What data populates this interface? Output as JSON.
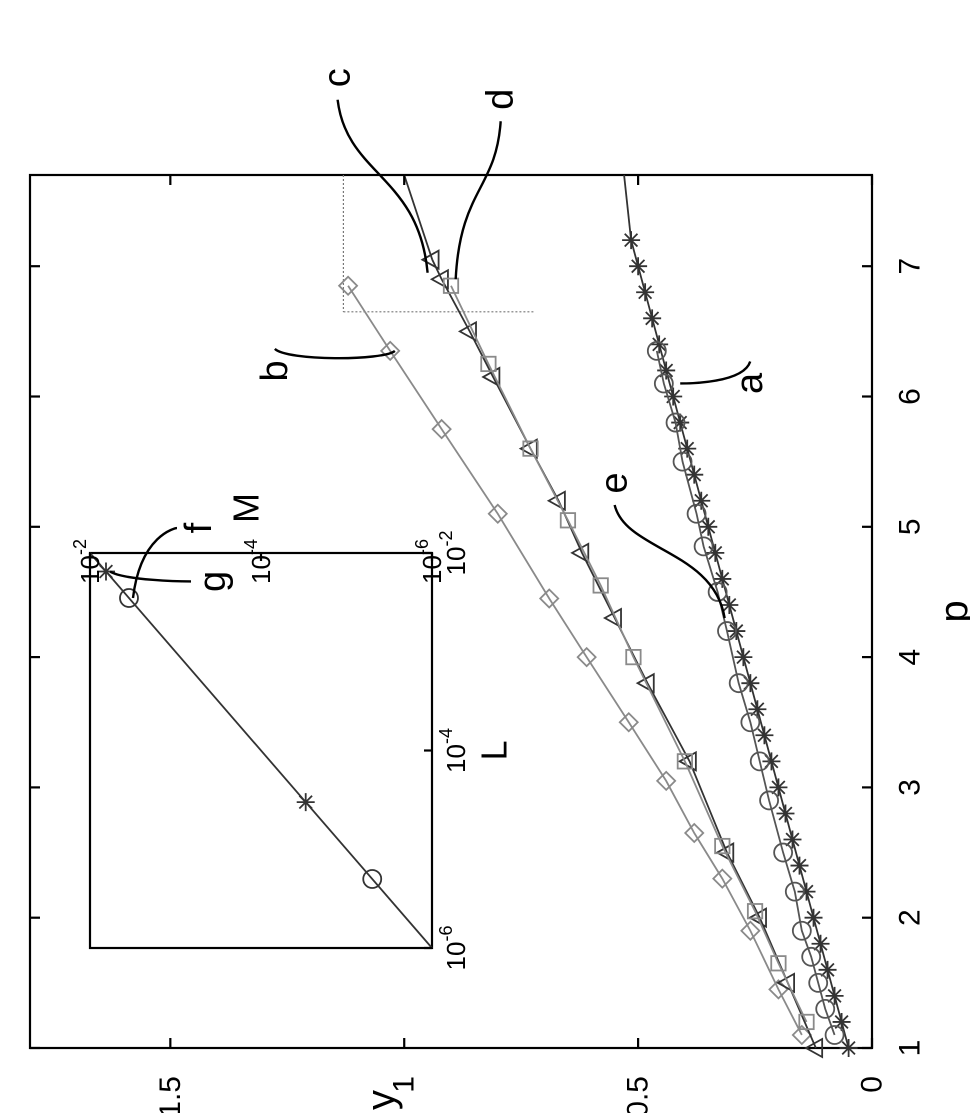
{
  "chart_data": {
    "type": "line",
    "xlabel": "p",
    "ylabel": "y",
    "xlim": [
      1,
      7.7
    ],
    "ylim": [
      0,
      1.8
    ],
    "xticks": [
      "1",
      "2",
      "3",
      "4",
      "5",
      "6",
      "7"
    ],
    "yticks": [
      "0",
      "0.5",
      "1",
      "1.5"
    ],
    "guide": {
      "p": 6.65,
      "y_from": 0.72,
      "y_to": 1.13
    },
    "series": [
      {
        "label": "a",
        "marker": "star",
        "color": "#333333",
        "x": [
          1.0,
          1.2,
          1.4,
          1.6,
          1.8,
          2.0,
          2.2,
          2.4,
          2.6,
          2.8,
          3.0,
          3.2,
          3.4,
          3.6,
          3.8,
          4.0,
          4.2,
          4.4,
          4.6,
          4.8,
          5.0,
          5.2,
          5.4,
          5.6,
          5.8,
          6.0,
          6.2,
          6.4,
          6.6,
          6.8,
          7.0,
          7.2
        ],
        "y": [
          0.05,
          0.065,
          0.08,
          0.095,
          0.11,
          0.125,
          0.14,
          0.155,
          0.17,
          0.185,
          0.2,
          0.215,
          0.23,
          0.245,
          0.26,
          0.275,
          0.29,
          0.305,
          0.32,
          0.335,
          0.35,
          0.365,
          0.38,
          0.395,
          0.41,
          0.425,
          0.44,
          0.455,
          0.47,
          0.485,
          0.5,
          0.515
        ]
      },
      {
        "label": "b",
        "marker": "diamond",
        "color": "#8a8a8a",
        "x": [
          1.1,
          1.45,
          1.9,
          2.3,
          2.65,
          3.05,
          3.5,
          4.0,
          4.45,
          5.1,
          5.75,
          6.35,
          6.85
        ],
        "y": [
          0.15,
          0.2,
          0.26,
          0.32,
          0.38,
          0.44,
          0.52,
          0.61,
          0.69,
          0.8,
          0.92,
          1.03,
          1.12
        ]
      },
      {
        "label": "c",
        "marker": "triangle",
        "color": "#333333",
        "x": [
          1.0,
          1.5,
          2.0,
          2.5,
          3.2,
          3.8,
          4.3,
          4.8,
          5.2,
          5.6,
          6.15,
          6.5,
          6.9,
          7.05
        ],
        "y": [
          0.12,
          0.18,
          0.24,
          0.31,
          0.39,
          0.48,
          0.55,
          0.62,
          0.67,
          0.73,
          0.81,
          0.86,
          0.92,
          0.94
        ]
      },
      {
        "label": "d",
        "marker": "square",
        "color": "#8a8a8a",
        "x": [
          1.2,
          1.65,
          2.05,
          2.55,
          3.2,
          4.0,
          4.55,
          5.05,
          5.6,
          6.25,
          6.85
        ],
        "y": [
          0.14,
          0.2,
          0.25,
          0.32,
          0.4,
          0.51,
          0.58,
          0.65,
          0.73,
          0.82,
          0.9
        ]
      },
      {
        "label": "e",
        "marker": "circle",
        "color": "#555555",
        "x": [
          1.1,
          1.3,
          1.5,
          1.7,
          1.9,
          2.2,
          2.5,
          2.9,
          3.2,
          3.5,
          3.8,
          4.2,
          4.5,
          4.85,
          5.1,
          5.5,
          5.8,
          6.1,
          6.35
        ],
        "y": [
          0.08,
          0.1,
          0.115,
          0.13,
          0.15,
          0.165,
          0.19,
          0.22,
          0.24,
          0.26,
          0.285,
          0.31,
          0.33,
          0.36,
          0.375,
          0.405,
          0.42,
          0.445,
          0.46
        ]
      }
    ],
    "extended_lines": [
      {
        "label": "c",
        "x": [
          7.05,
          7.7
        ],
        "y": [
          0.94,
          1.0
        ]
      },
      {
        "label": "a",
        "x": [
          7.2,
          7.7
        ],
        "y": [
          0.515,
          0.53
        ]
      }
    ],
    "callouts": [
      {
        "text": "a",
        "p": 6.1,
        "y": 0.41
      },
      {
        "text": "b",
        "p": 6.35,
        "y": 1.02
      },
      {
        "text": "c",
        "p": 6.95,
        "y": 0.95
      },
      {
        "text": "d",
        "p": 6.9,
        "y": 0.89
      },
      {
        "text": "e",
        "p": 4.3,
        "y": 0.315
      }
    ],
    "inset": {
      "type": "scatter",
      "xlabel": "L",
      "ylabel": "M",
      "xscale": "log",
      "yscale": "log",
      "xlim": [
        1e-06,
        0.01
      ],
      "ylim": [
        1e-06,
        0.01
      ],
      "xticks": [
        "10",
        "10",
        "10"
      ],
      "xtick_exponents": [
        "-6",
        "-4",
        "-2"
      ],
      "yticks": [
        "10",
        "10",
        "10"
      ],
      "ytick_exponents": [
        "-6",
        "-4",
        "-2"
      ],
      "line": {
        "x": [
          1e-06,
          0.01
        ],
        "y": [
          1e-06,
          0.01
        ]
      },
      "series": [
        {
          "label": "f",
          "marker": "circle",
          "x": [
            5e-06,
            0.0035
          ],
          "y": [
            5e-06,
            0.0035
          ]
        },
        {
          "label": "g",
          "marker": "star",
          "x": [
            3e-05,
            0.0065
          ],
          "y": [
            3e-05,
            0.0065
          ]
        }
      ],
      "callouts": [
        {
          "text": "f",
          "lx": 0.0035,
          "ly": 0.0035
        },
        {
          "text": "g",
          "lx": 0.0065,
          "ly": 0.0065
        }
      ]
    }
  }
}
